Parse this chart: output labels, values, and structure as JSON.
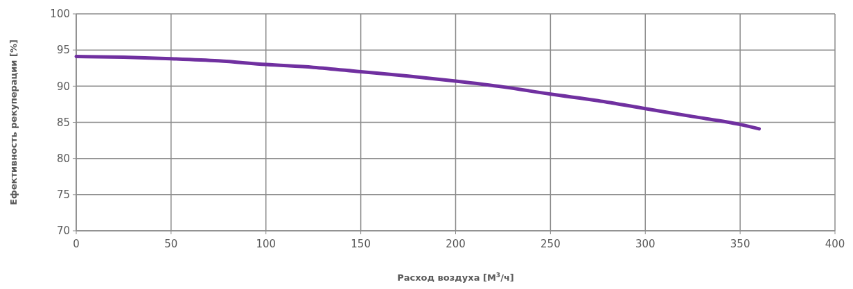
{
  "chart_data": {
    "type": "line",
    "xlabel": "Расход воздуха [М$^{3}$/ч]",
    "ylabel": "Ефективность рекуперации [%]",
    "x": [
      0,
      25,
      50,
      75,
      100,
      125,
      150,
      175,
      200,
      225,
      250,
      275,
      300,
      325,
      350,
      360
    ],
    "series": [
      {
        "color": "#7030a0",
        "values": [
          94.1,
          94.0,
          93.8,
          93.5,
          93.0,
          92.6,
          92.0,
          91.4,
          90.7,
          89.9,
          88.9,
          88.0,
          86.9,
          85.8,
          84.7,
          84.1
        ]
      }
    ],
    "xlim": [
      0,
      400
    ],
    "xticks": [
      0,
      50,
      100,
      150,
      200,
      250,
      300,
      350,
      400
    ],
    "ylim": [
      70,
      100
    ],
    "yticks": [
      70,
      75,
      80,
      85,
      90,
      95,
      100
    ],
    "grid": true,
    "marker": "none",
    "line_style": "solid"
  }
}
